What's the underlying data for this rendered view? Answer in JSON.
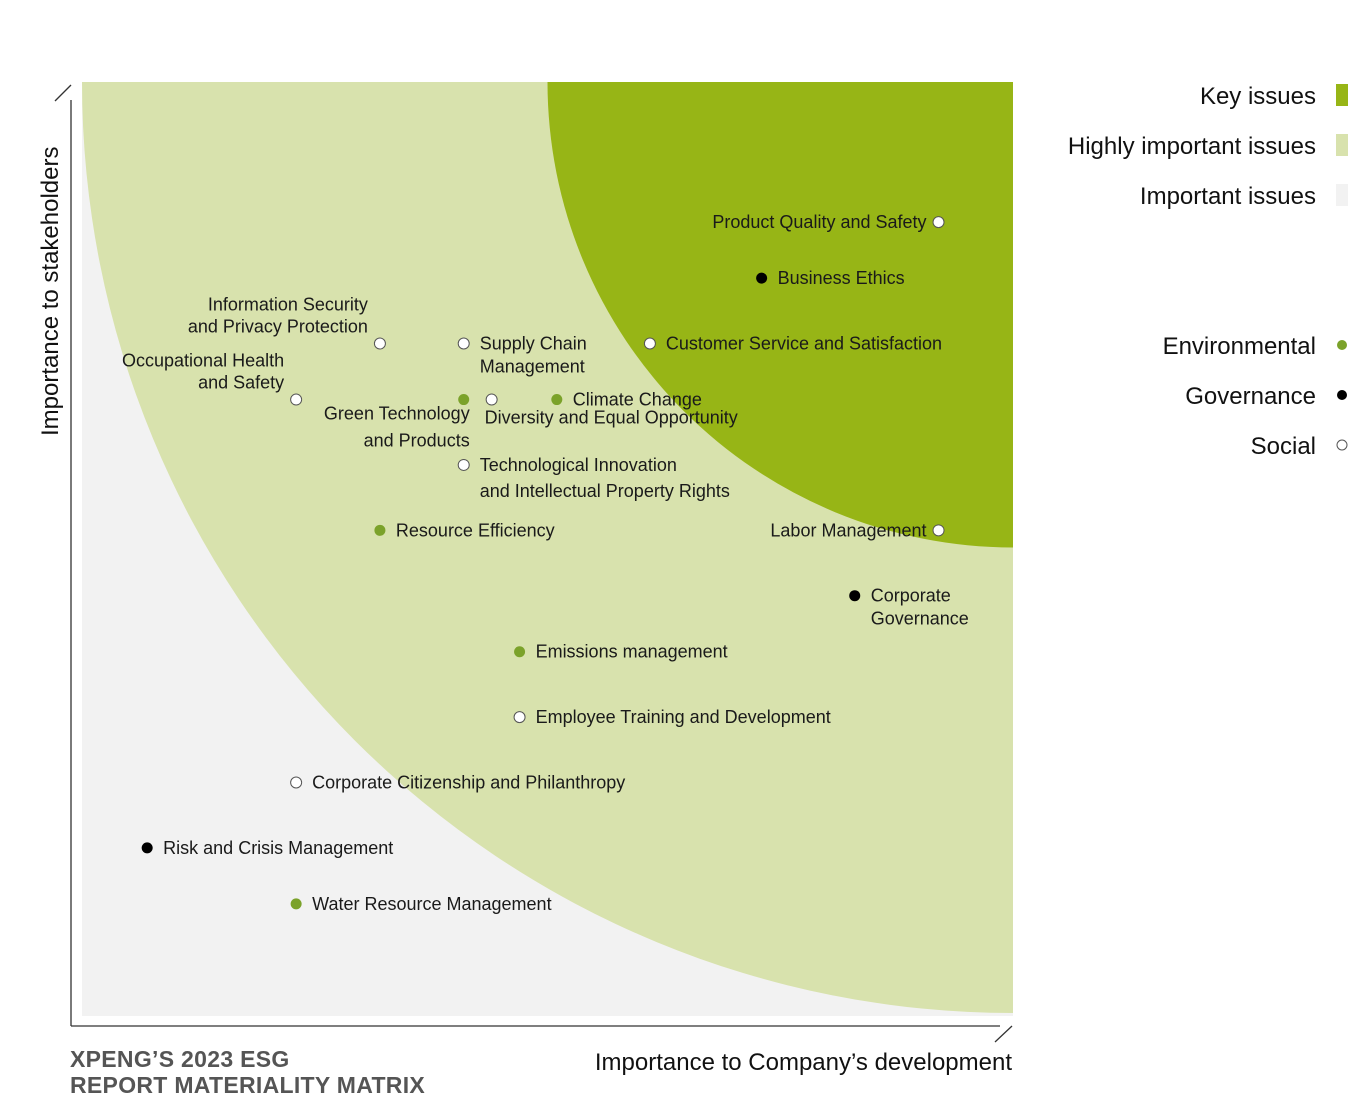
{
  "colors": {
    "key": "#97b516",
    "highly": "#d8e2ad",
    "important": "#f2f2f2",
    "environmental": "#7ba22a",
    "governance": "#000000",
    "social": "#ffffff",
    "axis": "#333333"
  },
  "title_lines": [
    "XPENG’S 2023 ESG",
    "REPORT MATERIALITY MATRIX"
  ],
  "axes": {
    "x_label": "Importance to Company’s development",
    "y_label": "Importance to stakeholders"
  },
  "legend": {
    "zones": [
      {
        "label": "Key issues",
        "color": "#97b516"
      },
      {
        "label": "Highly important issues",
        "color": "#d8e2ad"
      },
      {
        "label": "Important issues",
        "color": "#f2f2f2"
      }
    ],
    "categories": [
      {
        "label": "Environmental",
        "key": "environmental"
      },
      {
        "label": "Governance",
        "key": "governance"
      },
      {
        "label": "Social",
        "key": "social"
      }
    ]
  },
  "chart_data": {
    "type": "scatter",
    "xlim": [
      0,
      100
    ],
    "ylim": [
      0,
      100
    ],
    "xlabel": "Importance to Company’s development",
    "ylabel": "Importance to stakeholders",
    "zones": [
      {
        "name": "Important issues",
        "radius": 0
      },
      {
        "name": "Highly important issues",
        "radius": 100
      },
      {
        "name": "Key issues",
        "radius": 50
      }
    ],
    "points": [
      {
        "label": "Product Quality and Safety",
        "category": "social",
        "x": 92,
        "y": 85
      },
      {
        "label": "Business Ethics",
        "category": "governance",
        "x": 73,
        "y": 79
      },
      {
        "label": "Customer Service and Satisfaction",
        "category": "social",
        "x": 61,
        "y": 72
      },
      {
        "label": "Information Security\nand Privacy Protection",
        "category": "social",
        "x": 32,
        "y": 72
      },
      {
        "label": "Supply Chain\nManagement",
        "category": "social",
        "x": 41,
        "y": 72
      },
      {
        "label": "Occupational Health\nand Safety",
        "category": "social",
        "x": 23,
        "y": 66
      },
      {
        "label": "Green Technology\nand Products",
        "category": "environmental",
        "x": 41,
        "y": 66
      },
      {
        "label": "Diversity and Equal Opportunity",
        "category": "social",
        "x": 44,
        "y": 66
      },
      {
        "label": "Climate Change",
        "category": "environmental",
        "x": 51,
        "y": 66
      },
      {
        "label": "Technological Innovation\nand Intellectual Property Rights",
        "category": "social",
        "x": 41,
        "y": 59
      },
      {
        "label": "Resource Efficiency",
        "category": "environmental",
        "x": 32,
        "y": 52
      },
      {
        "label": "Labor Management",
        "category": "social",
        "x": 92,
        "y": 52
      },
      {
        "label": "Corporate\nGovernance",
        "category": "governance",
        "x": 83,
        "y": 45
      },
      {
        "label": "Emissions management",
        "category": "environmental",
        "x": 47,
        "y": 39
      },
      {
        "label": "Employee Training and Development",
        "category": "social",
        "x": 47,
        "y": 32
      },
      {
        "label": "Corporate Citizenship and Philanthropy",
        "category": "social",
        "x": 23,
        "y": 25
      },
      {
        "label": "Risk and Crisis Management",
        "category": "governance",
        "x": 7,
        "y": 18
      },
      {
        "label": "Water Resource Management",
        "category": "environmental",
        "x": 23,
        "y": 12
      }
    ]
  }
}
